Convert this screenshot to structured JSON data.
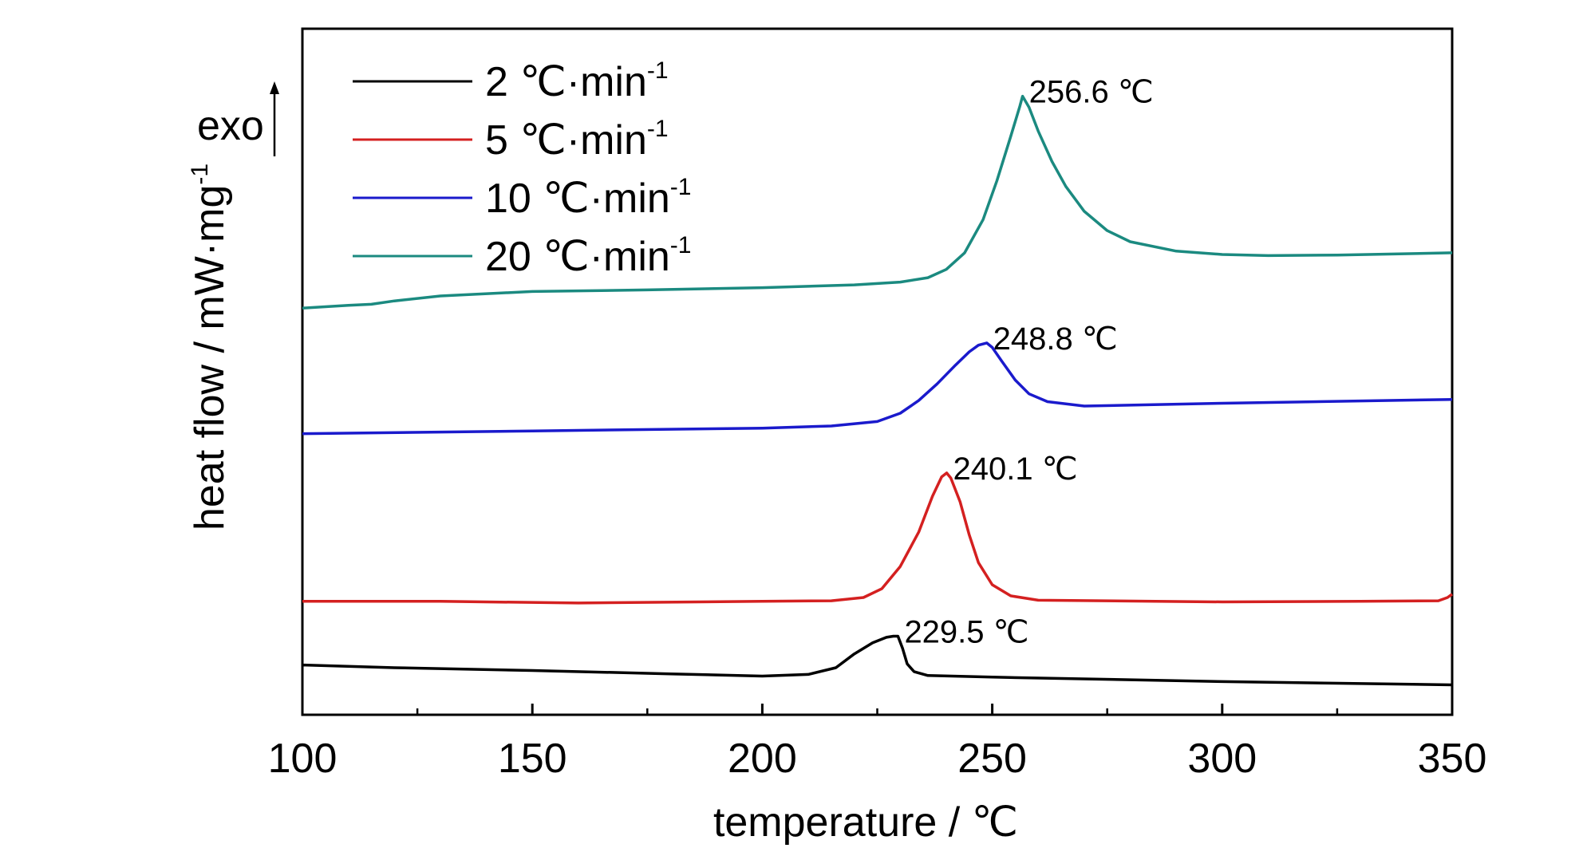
{
  "chart_data": {
    "type": "line",
    "title": "",
    "xlabel": "temperature / ℃",
    "ylabel": "heat flow / mW·mg",
    "ylabel_sup": "-1",
    "exo_label": "exo",
    "xlim": [
      100,
      350
    ],
    "x_ticks": [
      "100",
      "150",
      "200",
      "250",
      "300",
      "350"
    ],
    "y_ticks_shown": false,
    "grid": false,
    "legend_position": "top-left",
    "series": [
      {
        "name": "2 ℃·min",
        "name_sup": "-1",
        "color": "#000000",
        "points": [
          [
            100,
            0.09
          ],
          [
            120,
            0.085
          ],
          [
            150,
            0.08
          ],
          [
            180,
            0.074
          ],
          [
            200,
            0.07
          ],
          [
            210,
            0.073
          ],
          [
            216,
            0.085
          ],
          [
            220,
            0.11
          ],
          [
            224,
            0.13
          ],
          [
            227,
            0.14
          ],
          [
            228.5,
            0.142
          ],
          [
            229.5,
            0.142
          ],
          [
            230.5,
            0.12
          ],
          [
            231.5,
            0.092
          ],
          [
            233,
            0.078
          ],
          [
            236,
            0.071
          ],
          [
            250,
            0.068
          ],
          [
            300,
            0.06
          ],
          [
            350,
            0.054
          ]
        ]
      },
      {
        "name": "5 ℃·min",
        "name_sup": "-1",
        "color": "#d42020",
        "points": [
          [
            100,
            0.205
          ],
          [
            130,
            0.205
          ],
          [
            160,
            0.202
          ],
          [
            200,
            0.205
          ],
          [
            215,
            0.206
          ],
          [
            222,
            0.212
          ],
          [
            226,
            0.228
          ],
          [
            230,
            0.268
          ],
          [
            234,
            0.33
          ],
          [
            237,
            0.395
          ],
          [
            239,
            0.43
          ],
          [
            240.1,
            0.437
          ],
          [
            241,
            0.428
          ],
          [
            243,
            0.385
          ],
          [
            245,
            0.325
          ],
          [
            247,
            0.275
          ],
          [
            250,
            0.235
          ],
          [
            254,
            0.215
          ],
          [
            260,
            0.207
          ],
          [
            300,
            0.204
          ],
          [
            330,
            0.205
          ],
          [
            347,
            0.206
          ],
          [
            349,
            0.212
          ],
          [
            350,
            0.218
          ]
        ]
      },
      {
        "name": "10 ℃·min",
        "name_sup": "-1",
        "color": "#1a1acc",
        "points": [
          [
            100,
            0.508
          ],
          [
            150,
            0.513
          ],
          [
            200,
            0.518
          ],
          [
            215,
            0.522
          ],
          [
            225,
            0.53
          ],
          [
            230,
            0.545
          ],
          [
            234,
            0.568
          ],
          [
            238,
            0.598
          ],
          [
            242,
            0.632
          ],
          [
            245,
            0.656
          ],
          [
            247,
            0.668
          ],
          [
            248.8,
            0.672
          ],
          [
            250,
            0.664
          ],
          [
            252,
            0.64
          ],
          [
            255,
            0.605
          ],
          [
            258,
            0.58
          ],
          [
            262,
            0.566
          ],
          [
            270,
            0.558
          ],
          [
            300,
            0.563
          ],
          [
            350,
            0.57
          ]
        ]
      },
      {
        "name": "20 ℃·min",
        "name_sup": "-1",
        "color": "#1b8a80",
        "points": [
          [
            100,
            0.735
          ],
          [
            110,
            0.74
          ],
          [
            115,
            0.742
          ],
          [
            120,
            0.748
          ],
          [
            130,
            0.757
          ],
          [
            150,
            0.765
          ],
          [
            175,
            0.768
          ],
          [
            200,
            0.772
          ],
          [
            220,
            0.777
          ],
          [
            230,
            0.782
          ],
          [
            236,
            0.79
          ],
          [
            240,
            0.805
          ],
          [
            244,
            0.835
          ],
          [
            248,
            0.895
          ],
          [
            251,
            0.965
          ],
          [
            254,
            1.045
          ],
          [
            256,
            1.1
          ],
          [
            256.6,
            1.118
          ],
          [
            258,
            1.098
          ],
          [
            260,
            1.055
          ],
          [
            263,
            1.0
          ],
          [
            266,
            0.955
          ],
          [
            270,
            0.91
          ],
          [
            275,
            0.875
          ],
          [
            280,
            0.855
          ],
          [
            290,
            0.838
          ],
          [
            300,
            0.832
          ],
          [
            310,
            0.83
          ],
          [
            325,
            0.831
          ],
          [
            350,
            0.835
          ]
        ]
      }
    ],
    "annotations": [
      {
        "text": "229.5 ℃",
        "series": 0,
        "x": 229.5
      },
      {
        "text": "240.1 ℃",
        "series": 1,
        "x": 240.1
      },
      {
        "text": "248.8 ℃",
        "series": 2,
        "x": 248.8
      },
      {
        "text": "256.6 ℃",
        "series": 3,
        "x": 256.6
      }
    ]
  }
}
